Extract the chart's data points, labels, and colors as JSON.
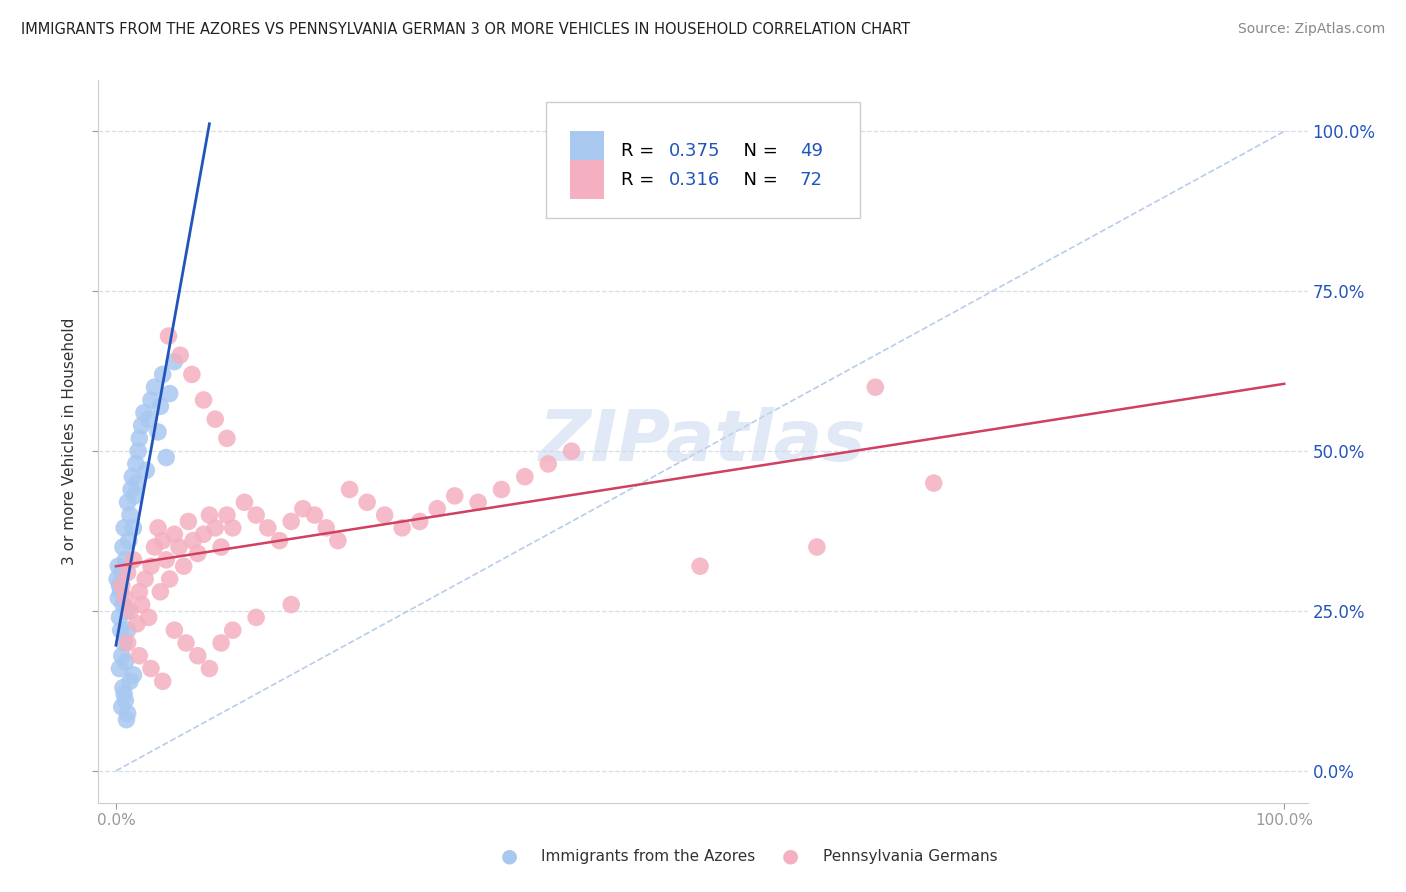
{
  "title": "IMMIGRANTS FROM THE AZORES VS PENNSYLVANIA GERMAN 3 OR MORE VEHICLES IN HOUSEHOLD CORRELATION CHART",
  "source": "Source: ZipAtlas.com",
  "ylabel": "3 or more Vehicles in Household",
  "xlim": [
    -0.015,
    1.02
  ],
  "ylim": [
    -0.05,
    1.08
  ],
  "xtick_vals": [
    0.0,
    1.0
  ],
  "xtick_labels": [
    "0.0%",
    "100.0%"
  ],
  "ytick_vals": [
    0.0,
    0.25,
    0.5,
    0.75,
    1.0
  ],
  "ytick_labels": [
    "",
    "",
    "",
    "",
    ""
  ],
  "ytick_labels_right": [
    "0.0%",
    "25.0%",
    "50.0%",
    "75.0%",
    "100.0%"
  ],
  "watermark_text": "ZIPatlas",
  "legend_R1": "0.375",
  "legend_N1": "49",
  "legend_R2": "0.316",
  "legend_N2": "72",
  "blue_color": "#a8c8f0",
  "blue_line_color": "#2255bb",
  "pink_color": "#f4b0c0",
  "pink_line_color": "#d04060",
  "diag_color": "#b0c8e8",
  "grid_color": "#d8dde8",
  "background_color": "#ffffff",
  "title_color": "#222222",
  "source_color": "#888888",
  "axis_color": "#999999",
  "label_color": "#2255bb",
  "text_color": "#333333"
}
